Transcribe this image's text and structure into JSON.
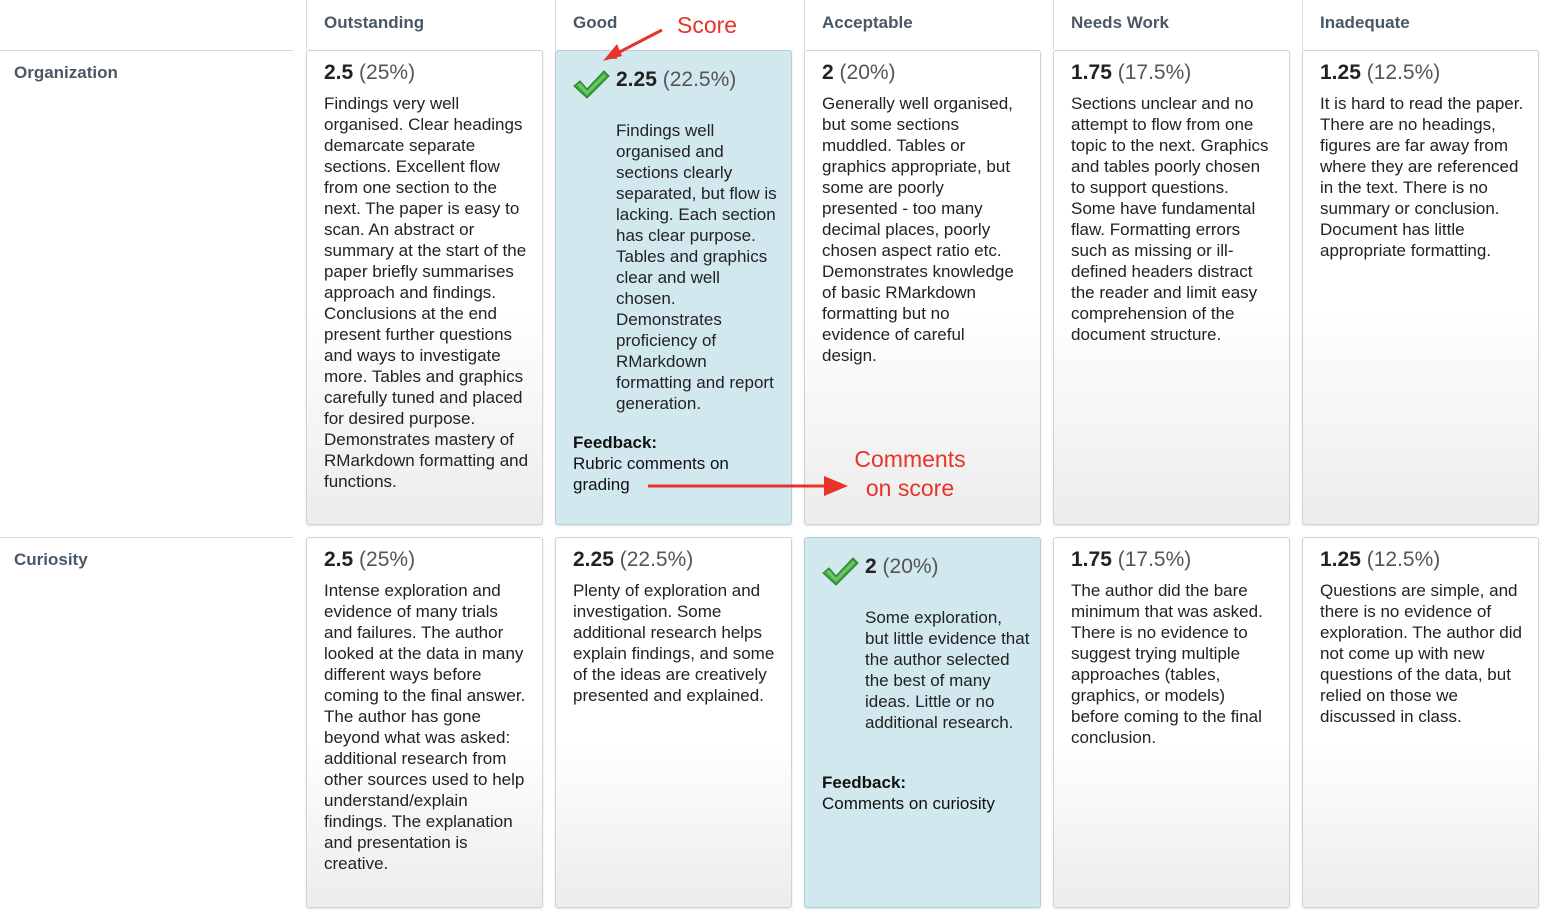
{
  "columns": [
    "Outstanding",
    "Good",
    "Acceptable",
    "Needs Work",
    "Inadequate"
  ],
  "rows": [
    {
      "label": "Organization",
      "selected_index": 1,
      "feedback_title": "Feedback:",
      "feedback_text": "Rubric comments on grading",
      "cells": [
        {
          "points": "2.5",
          "percent": "(25%)",
          "desc": "Findings very well organised. Clear headings demarcate separate sections. Excellent flow from one section to the next. The paper is easy to scan. An abstract or summary at the start of the paper briefly summarises approach and findings. Conclusions at the end present further questions and ways to investigate more. Tables and graphics carefully tuned and placed for desired purpose. Demonstrates mastery of RMarkdown formatting and functions."
        },
        {
          "points": "2.25",
          "percent": "(22.5%)",
          "desc": "Findings well organised and sections clearly separated, but flow is lacking. Each section has clear purpose. Tables and graphics clear and well chosen. Demonstrates proficiency of RMarkdown formatting and report generation."
        },
        {
          "points": "2",
          "percent": "(20%)",
          "desc": "Generally well organised, but some sections muddled. Tables or graphics appropriate, but some are poorly presented - too many decimal places, poorly chosen aspect ratio etc. Demonstrates knowledge of basic RMarkdown formatting but no evidence of careful design."
        },
        {
          "points": "1.75",
          "percent": "(17.5%)",
          "desc": "Sections unclear and no attempt to flow from one topic to the next. Graphics and tables poorly chosen to support questions. Some have fundamental flaw. Formatting errors such as missing or ill-defined headers distract the reader and limit easy comprehension of the document structure."
        },
        {
          "points": "1.25",
          "percent": "(12.5%)",
          "desc": "It is hard to read the paper. There are no headings, figures are far away from where they are referenced in the text. There is no summary or conclusion. Document has little appropriate formatting."
        }
      ]
    },
    {
      "label": "Curiosity",
      "selected_index": 2,
      "feedback_title": "Feedback:",
      "feedback_text": "Comments on curiosity",
      "cells": [
        {
          "points": "2.5",
          "percent": "(25%)",
          "desc": "Intense exploration and evidence of many trials and failures. The author looked at the data in many different ways before coming to the final answer. The author has gone beyond what was asked: additional research from other sources used to help understand/explain findings. The explanation and presentation is creative."
        },
        {
          "points": "2.25",
          "percent": "(22.5%)",
          "desc": "Plenty of exploration and investigation. Some additional research helps explain findings, and some of the ideas are creatively presented and explained."
        },
        {
          "points": "2",
          "percent": "(20%)",
          "desc": "Some exploration, but little evidence that the author selected the best of many ideas. Little or no additional research."
        },
        {
          "points": "1.75",
          "percent": "(17.5%)",
          "desc": "The author did the bare minimum that was asked. There is no evidence to suggest trying multiple approaches (tables, graphics, or models) before coming to the final conclusion."
        },
        {
          "points": "1.25",
          "percent": "(12.5%)",
          "desc": "Questions are simple, and there is no evidence of exploration. The author did not come up with new questions of the data, but relied on those we discussed in class."
        }
      ]
    }
  ],
  "annotations": {
    "score": "Score",
    "comments_line1": "Comments",
    "comments_line2": "on score",
    "color": "#e8322a"
  },
  "colors": {
    "header_text": "#4a5866",
    "selected_bg": "#d1e8ef",
    "check_green": "#3aa83a"
  }
}
